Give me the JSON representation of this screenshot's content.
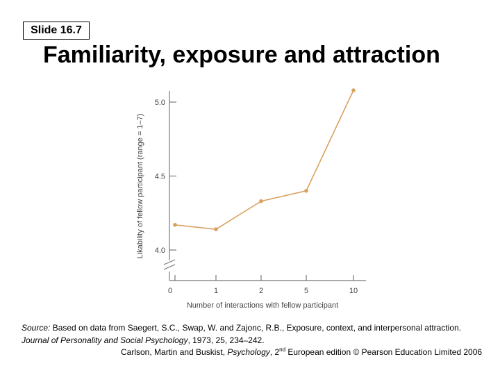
{
  "slide": {
    "label": "Slide 16.7",
    "title": "Familiarity, exposure and attraction"
  },
  "colors": {
    "line": "#d9a15f",
    "axis": "#777777",
    "tick_text": "#444444"
  },
  "chart_data": {
    "type": "line",
    "title": "",
    "xlabel": "Number of interactions with fellow participant",
    "ylabel": "Likability of fellow participant (range = 1–7)",
    "categories": [
      "0",
      "1",
      "2",
      "5",
      "10"
    ],
    "series": [
      {
        "name": "Likability",
        "values": [
          4.17,
          4.14,
          4.33,
          4.4,
          5.08
        ]
      }
    ],
    "ylim": [
      4.0,
      5.0
    ],
    "yticks": [
      4.0,
      4.5,
      5.0
    ],
    "ytick_labels": [
      "4.0",
      "4.5",
      "5.0"
    ],
    "y_axis_break": true,
    "grid": false
  },
  "source": {
    "prefix": "Source:",
    "text": " Based on data from Saegert, S.C., Swap, W. and Zajonc, R.B., Exposure, context, and interpersonal attraction.",
    "journal": "Journal of Personality and Social Psychology",
    "details": ", 1973, 25, 234–242."
  },
  "credit": {
    "authors": "Carlson, Martin and Buskist, ",
    "book": "Psychology",
    "comma": ", ",
    "edition_num": "2",
    "edition_sup": "nd",
    "rest": " European edition © Pearson Education Limited 2006"
  }
}
